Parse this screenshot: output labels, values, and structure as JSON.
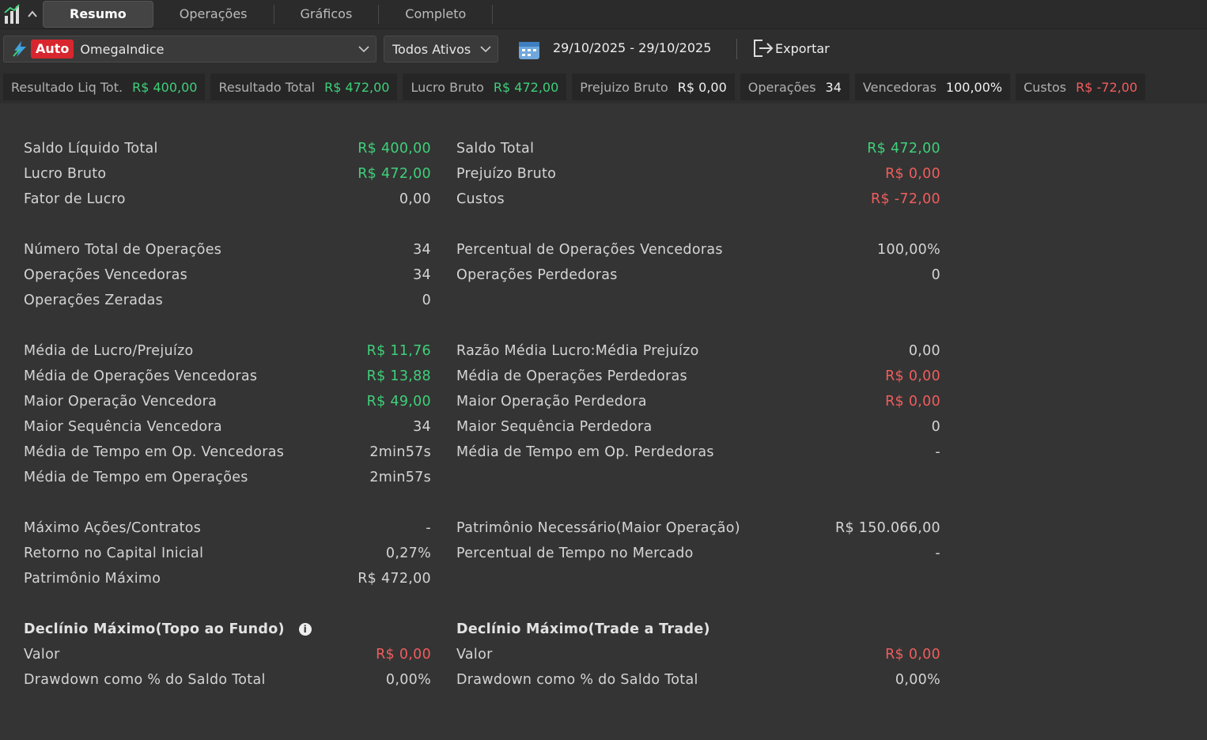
{
  "tabs": [
    "Resumo",
    "Operações",
    "Gráficos",
    "Completo"
  ],
  "toolbar": {
    "auto": "Auto",
    "strategy": "OmegaIndice",
    "assets": "Todos Ativos",
    "date_range": "29/10/2025 - 29/10/2025",
    "export": "Exportar"
  },
  "stats": [
    {
      "label": "Resultado Liq Tot.",
      "value": "R$ 400,00",
      "color": "#3fd07a"
    },
    {
      "label": "Resultado Total",
      "value": "R$ 472,00",
      "color": "#3fd07a"
    },
    {
      "label": "Lucro Bruto",
      "value": "R$ 472,00",
      "color": "#3fd07a"
    },
    {
      "label": "Prejuizo Bruto",
      "value": "R$ 0,00"
    },
    {
      "label": "Operações",
      "value": "34"
    },
    {
      "label": "Vencedoras",
      "value": "100,00%"
    },
    {
      "label": "Custos",
      "value": "R$ -72,00",
      "color": "#f05d5d"
    }
  ],
  "sections": [
    {
      "left": [
        {
          "label": "Saldo Líquido Total",
          "value": "R$ 400,00",
          "color": "#3fd07a"
        },
        {
          "label": "Lucro Bruto",
          "value": "R$ 472,00",
          "color": "#3fd07a"
        },
        {
          "label": "Fator de Lucro",
          "value": "0,00"
        }
      ],
      "right": [
        {
          "label": "Saldo Total",
          "value": "R$ 472,00",
          "color": "#3fd07a"
        },
        {
          "label": "Prejuízo Bruto",
          "value": "R$ 0,00",
          "color": "#f05d5d"
        },
        {
          "label": "Custos",
          "value": "R$ -72,00",
          "color": "#f05d5d"
        }
      ]
    },
    {
      "left": [
        {
          "label": "Número Total de Operações",
          "value": "34"
        },
        {
          "label": "Operações Vencedoras",
          "value": "34"
        },
        {
          "label": "Operações Zeradas",
          "value": "0"
        }
      ],
      "right": [
        {
          "label": "Percentual de Operações Vencedoras",
          "value": "100,00%"
        },
        {
          "label": "Operações Perdedoras",
          "value": "0"
        }
      ]
    },
    {
      "left": [
        {
          "label": "Média de Lucro/Prejuízo",
          "value": "R$ 11,76",
          "color": "#3fd07a"
        },
        {
          "label": "Média de Operações Vencedoras",
          "value": "R$ 13,88",
          "color": "#3fd07a"
        },
        {
          "label": "Maior Operação Vencedora",
          "value": "R$ 49,00",
          "color": "#3fd07a"
        },
        {
          "label": "Maior Sequência Vencedora",
          "value": "34"
        },
        {
          "label": "Média de Tempo em Op. Vencedoras",
          "value": "2min57s"
        },
        {
          "label": "Média de Tempo em Operações",
          "value": "2min57s"
        }
      ],
      "right": [
        {
          "label": "Razão Média Lucro:Média Prejuízo",
          "value": "0,00"
        },
        {
          "label": "Média de Operações Perdedoras",
          "value": "R$ 0,00",
          "color": "#f05d5d"
        },
        {
          "label": "Maior Operação Perdedora",
          "value": "R$ 0,00",
          "color": "#f05d5d"
        },
        {
          "label": "Maior Sequência Perdedora",
          "value": "0"
        },
        {
          "label": "Média de Tempo em Op. Perdedoras",
          "value": "-"
        }
      ]
    },
    {
      "left": [
        {
          "label": "Máximo Ações/Contratos",
          "value": "-"
        },
        {
          "label": "Retorno no Capital Inicial",
          "value": "0,27%"
        },
        {
          "label": "Patrimônio Máximo",
          "value": "R$ 472,00"
        }
      ],
      "right": [
        {
          "label": "Patrimônio Necessário(Maior Operação)",
          "value": "R$ 150.066,00"
        },
        {
          "label": "Percentual de Tempo no Mercado",
          "value": "-"
        }
      ]
    },
    {
      "left_title": "Declínio Máximo(Topo ao Fundo)",
      "right_title": "Declínio Máximo(Trade a Trade)",
      "left": [
        {
          "label": "Valor",
          "value": "R$ 0,00",
          "color": "#f05d5d"
        },
        {
          "label": "Drawdown como % do Saldo Total",
          "value": "0,00%"
        }
      ],
      "right": [
        {
          "label": "Valor",
          "value": "R$ 0,00",
          "color": "#f05d5d"
        },
        {
          "label": "Drawdown como % do Saldo Total",
          "value": "0,00%"
        }
      ]
    }
  ]
}
